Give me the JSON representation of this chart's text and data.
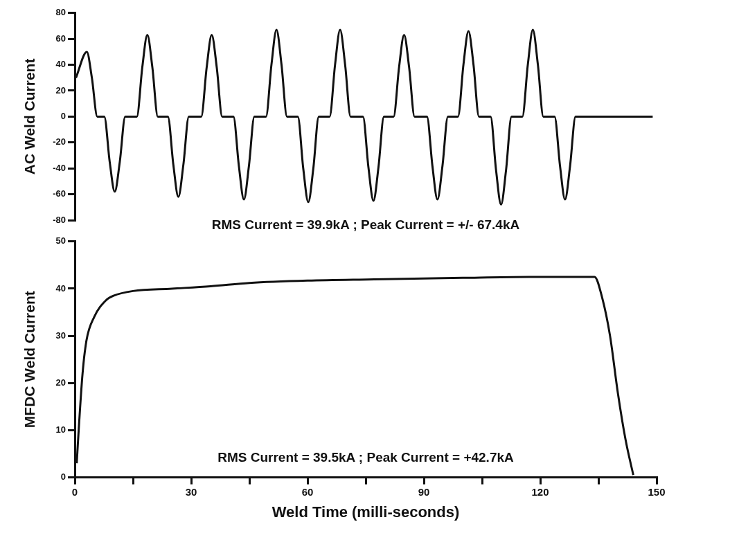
{
  "chart_data": [
    {
      "type": "line",
      "ylabel": "AC Weld Current",
      "annotations": [
        "RMS Current = 39.9kA ; Peak Current = +/- 67.4kA"
      ],
      "xlim": [
        0,
        150
      ],
      "ylim": [
        -80,
        80
      ],
      "yticks": [
        -80,
        -60,
        -40,
        -20,
        0,
        20,
        40,
        60,
        80
      ],
      "tick_labels": "y",
      "grid": false,
      "legend": false,
      "marker": "none",
      "series": [
        {
          "color": "#111111",
          "x": [
            0.3,
            3.1,
            4.4,
            5.8,
            7.6,
            9.0,
            10.3,
            11.6,
            13.0,
            16.0,
            17.4,
            18.7,
            20.0,
            21.4,
            24.0,
            25.4,
            26.7,
            28.0,
            29.4,
            32.6,
            34.0,
            35.3,
            36.6,
            38.0,
            40.9,
            42.3,
            43.6,
            44.9,
            46.3,
            49.3,
            50.7,
            52.0,
            53.3,
            54.7,
            57.5,
            58.9,
            60.2,
            61.5,
            62.9,
            65.7,
            67.1,
            68.4,
            69.7,
            71.1,
            74.3,
            75.7,
            77.0,
            78.3,
            79.7,
            82.2,
            83.6,
            84.9,
            86.2,
            87.6,
            90.8,
            92.2,
            93.5,
            94.8,
            96.2,
            98.8,
            100.2,
            101.5,
            102.8,
            104.2,
            107.2,
            108.6,
            109.9,
            111.2,
            112.6,
            115.4,
            116.8,
            118.1,
            119.4,
            120.8,
            123.7,
            125.1,
            126.4,
            127.7,
            129.1,
            149
          ],
          "values": [
            30,
            50,
            30,
            0,
            0,
            -35,
            -58,
            -35,
            0,
            0,
            38,
            63,
            38,
            0,
            0,
            -37,
            -62,
            -37,
            0,
            0,
            38,
            63,
            38,
            0,
            0,
            -38,
            -64,
            -38,
            0,
            0,
            40,
            67,
            40,
            0,
            0,
            -40,
            -66,
            -40,
            0,
            0,
            40,
            67,
            40,
            0,
            0,
            -39,
            -65,
            -39,
            0,
            0,
            38,
            63,
            38,
            0,
            0,
            -38,
            -64,
            -38,
            0,
            0,
            40,
            66,
            40,
            0,
            0,
            -41,
            -68,
            -41,
            0,
            0,
            40,
            67,
            40,
            0,
            0,
            -38,
            -64,
            -38,
            0,
            0
          ]
        }
      ]
    },
    {
      "type": "line",
      "xlabel": "Weld Time (milli-seconds)",
      "ylabel": "MFDC Weld Current",
      "annotations": [
        "RMS Current = 39.5kA ; Peak Current = +42.7kA"
      ],
      "xlim": [
        0,
        150
      ],
      "xticks": [
        0,
        {
          "value": 15,
          "label": null
        },
        30,
        {
          "value": 45,
          "label": null
        },
        60,
        {
          "value": 75,
          "label": null
        },
        90,
        {
          "value": 105,
          "label": null
        },
        120,
        {
          "value": 135,
          "label": null
        },
        150
      ],
      "ylim": [
        0,
        50
      ],
      "yticks": [
        0,
        10,
        20,
        30,
        40,
        50
      ],
      "grid": false,
      "legend": false,
      "marker": "none",
      "series": [
        {
          "color": "#111111",
          "x": [
            0.5,
            1,
            2,
            3,
            5,
            8,
            10,
            15,
            25,
            35,
            45,
            60,
            80,
            100,
            120,
            134,
            136,
            138,
            140,
            142,
            144
          ],
          "values": [
            3,
            10,
            22,
            29,
            34,
            37.5,
            38.5,
            39.5,
            40,
            40.5,
            41.2,
            41.7,
            42,
            42.3,
            42.5,
            42.5,
            38,
            30,
            18,
            8,
            0.5
          ]
        }
      ]
    }
  ]
}
